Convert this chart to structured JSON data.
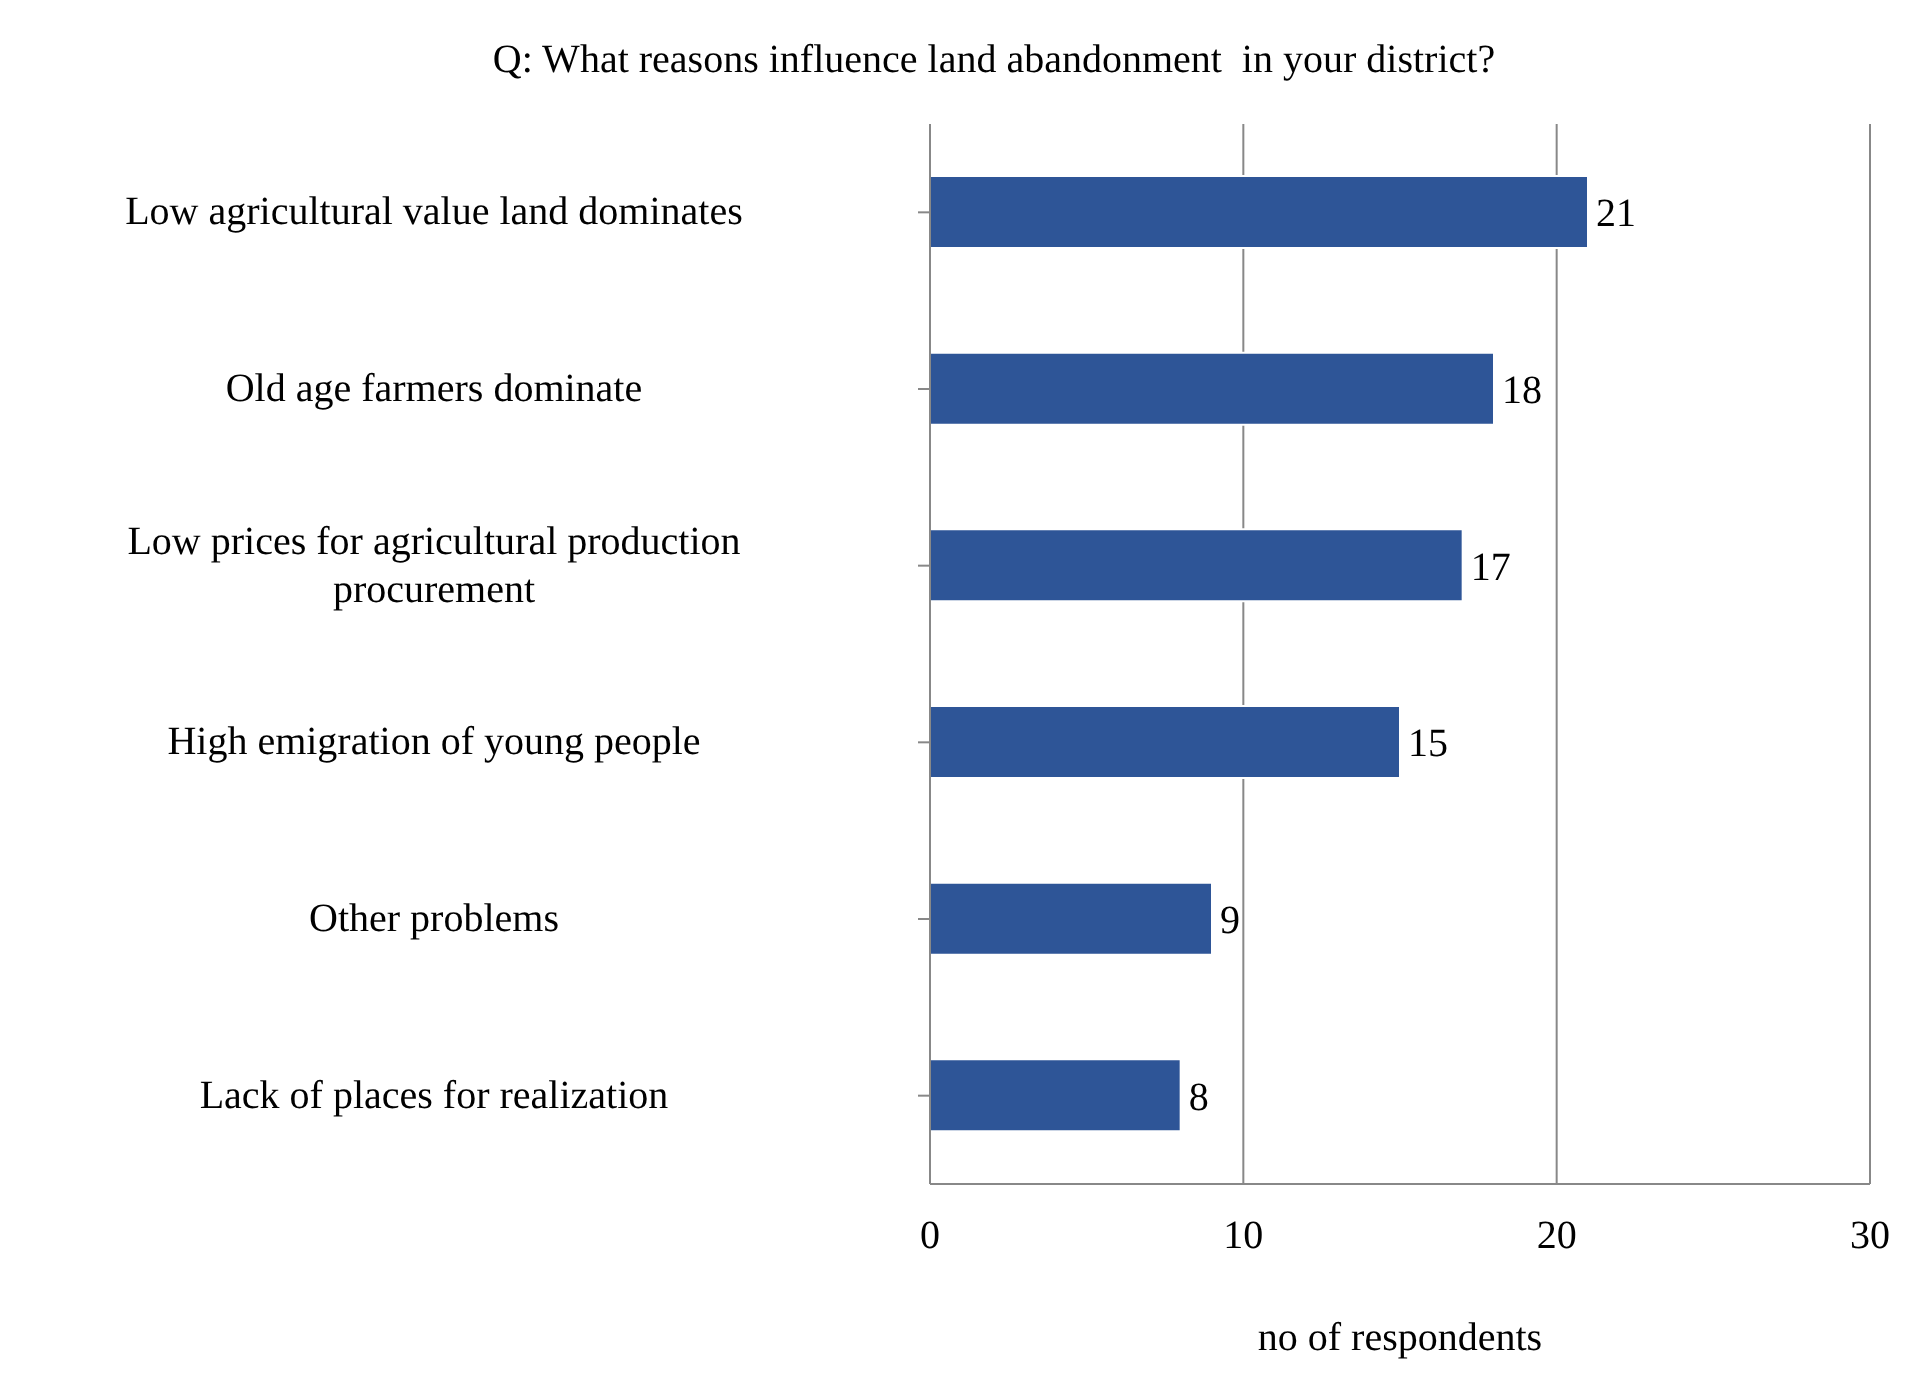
{
  "chart_data": {
    "type": "bar",
    "orientation": "horizontal",
    "title": "Q: What reasons influence land abandonment  in your district?",
    "categories": [
      "Low agricultural value land dominates",
      "Old age farmers dominate",
      "Low prices for agricultural production procurement",
      "High emigration of young people",
      "Other problems",
      "Lack of places for realization"
    ],
    "values": [
      21,
      18,
      17,
      15,
      9,
      8
    ],
    "color": "#2e5597",
    "xlabel": "no of respondents",
    "xlim": [
      0,
      30
    ],
    "xticks": [
      0,
      10,
      20,
      30
    ],
    "grid": "x",
    "data_labels": true
  }
}
